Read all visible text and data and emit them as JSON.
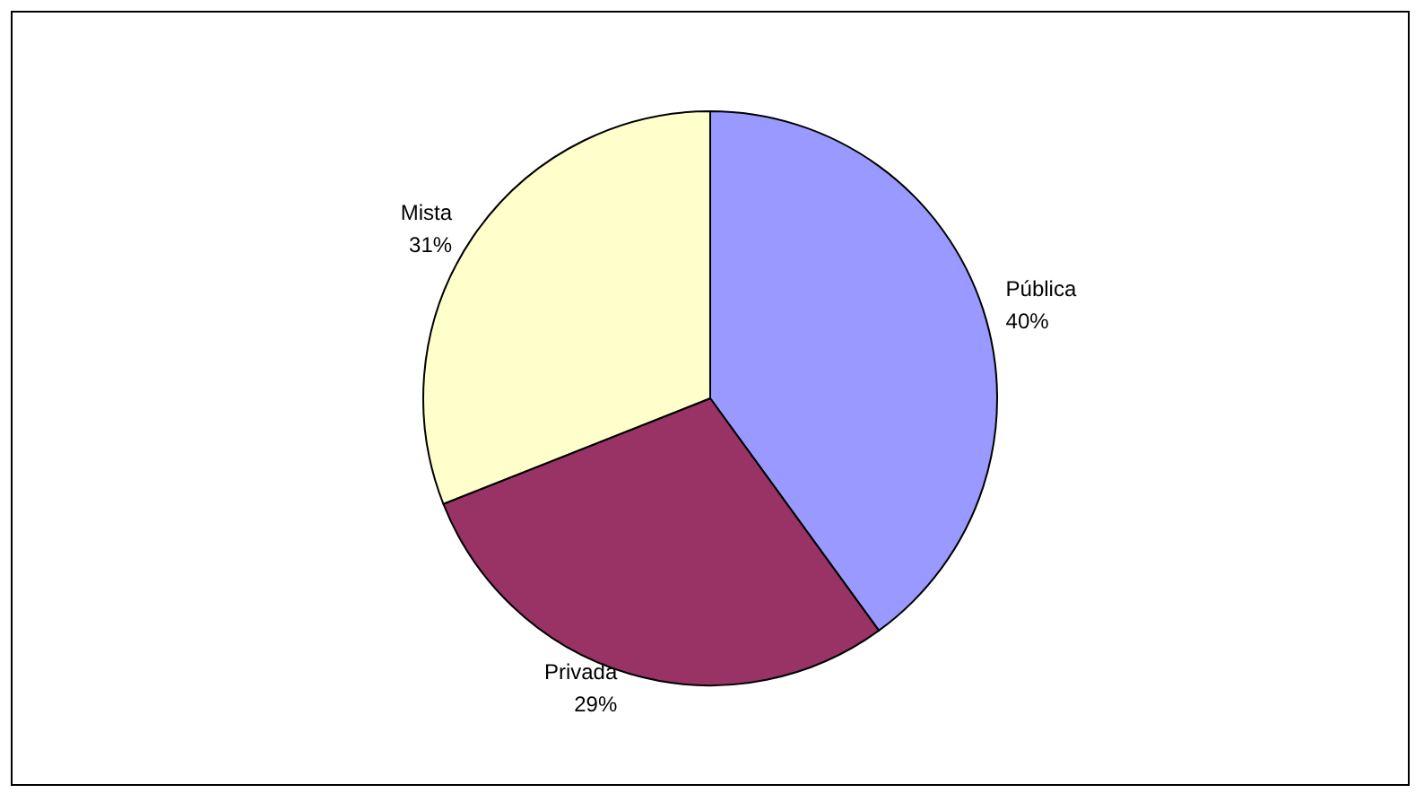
{
  "chart_data": {
    "type": "pie",
    "categories": [
      "Pública",
      "Privada",
      "Mista"
    ],
    "values": [
      40,
      29,
      31
    ],
    "colors": [
      "#9999ff",
      "#993366",
      "#ffffcc"
    ],
    "value_labels": [
      "40%",
      "29%",
      "31%"
    ]
  }
}
